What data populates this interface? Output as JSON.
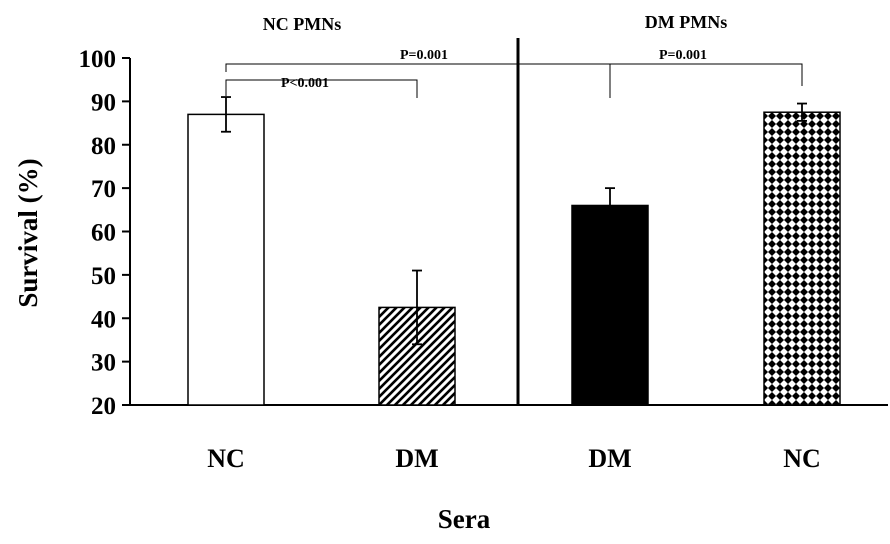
{
  "chart_data": {
    "type": "bar",
    "title": "",
    "xlabel": "Sera",
    "ylabel": "Survival (%)",
    "ylim": [
      20,
      100
    ],
    "yticks": [
      20,
      30,
      40,
      50,
      60,
      70,
      80,
      90,
      100
    ],
    "grid": false,
    "legend": "none",
    "panels": [
      {
        "label": "NC  PMNs",
        "categories": [
          "NC",
          "DM"
        ]
      },
      {
        "label": "DM  PMNs",
        "categories": [
          "DM",
          "NC"
        ]
      }
    ],
    "categories": [
      "NC",
      "DM",
      "DM",
      "NC"
    ],
    "values": [
      87,
      42.5,
      66,
      87.5
    ],
    "errors": [
      4,
      8.5,
      4,
      2
    ],
    "fills": [
      "white",
      "diagonal-hatch",
      "solid-black",
      "checkered"
    ],
    "annotations": [
      {
        "text": "P<0.001",
        "from_bar": 0,
        "to_bar": 1
      },
      {
        "text": "P=0.001",
        "from_bar": 0,
        "to_bar": 2
      },
      {
        "text": "P=0.001",
        "from_bar": 2,
        "to_bar": 3
      }
    ]
  }
}
